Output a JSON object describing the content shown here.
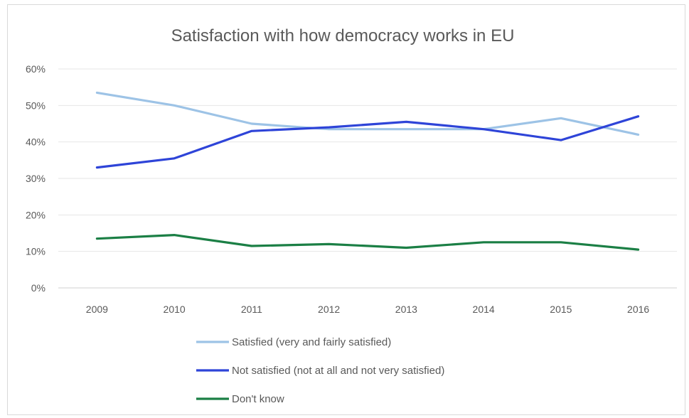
{
  "chart_data": {
    "type": "line",
    "title": "Satisfaction with how democracy works in EU",
    "xlabel": "",
    "ylabel": "",
    "categories": [
      "2009",
      "2010",
      "2011",
      "2012",
      "2013",
      "2014",
      "2015",
      "2016"
    ],
    "y_ticks": [
      "0%",
      "10%",
      "20%",
      "30%",
      "40%",
      "50%",
      "60%"
    ],
    "ylim": [
      0,
      60
    ],
    "y_unit": "%",
    "grid": true,
    "legend_position": "bottom",
    "series": [
      {
        "name": "Satisfied (very and fairly satisfied)",
        "color": "#9dc3e6",
        "values": [
          53.5,
          50,
          45,
          43.5,
          43.5,
          43.5,
          46.5,
          42
        ]
      },
      {
        "name": "Not satisfied (not at all and not very satisfied)",
        "color": "#2e44d8",
        "values": [
          33,
          35.5,
          43,
          44,
          45.5,
          43.5,
          40.5,
          47
        ]
      },
      {
        "name": "Don't know",
        "color": "#1b7f45",
        "values": [
          13.5,
          14.5,
          11.5,
          12,
          11,
          12.5,
          12.5,
          10.5
        ]
      }
    ]
  }
}
